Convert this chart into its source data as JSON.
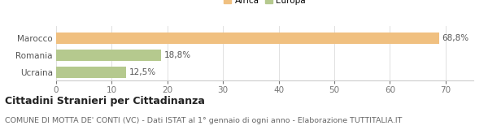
{
  "categories": [
    "Marocco",
    "Romania",
    "Ucraina"
  ],
  "values": [
    68.8,
    18.8,
    12.5
  ],
  "labels": [
    "68,8%",
    "18,8%",
    "12,5%"
  ],
  "colors": [
    "#f0c080",
    "#b5c98e",
    "#b5c98e"
  ],
  "legend": [
    {
      "label": "Africa",
      "color": "#f0c080"
    },
    {
      "label": "Europa",
      "color": "#b5c98e"
    }
  ],
  "xlim": [
    0,
    75
  ],
  "xticks": [
    0,
    10,
    20,
    30,
    40,
    50,
    60,
    70
  ],
  "title": "Cittadini Stranieri per Cittadinanza",
  "subtitle": "COMUNE DI MOTTA DE' CONTI (VC) - Dati ISTAT al 1° gennaio di ogni anno - Elaborazione TUTTITALIA.IT",
  "bar_height": 0.65,
  "background_color": "#ffffff",
  "label_fontsize": 7.5,
  "tick_fontsize": 7.5,
  "title_fontsize": 9,
  "subtitle_fontsize": 6.8
}
